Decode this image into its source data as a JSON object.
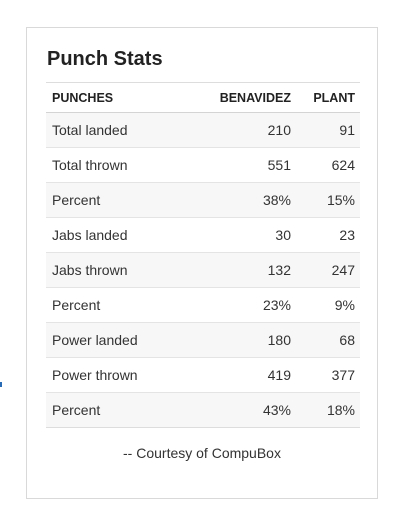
{
  "card": {
    "title": "Punch Stats",
    "columns": [
      "PUNCHES",
      "BENAVIDEZ",
      "PLANT"
    ],
    "rows": [
      {
        "label": "Total landed",
        "a": "210",
        "b": "91"
      },
      {
        "label": "Total thrown",
        "a": "551",
        "b": "624"
      },
      {
        "label": "Percent",
        "a": "38%",
        "b": "15%"
      },
      {
        "label": "Jabs landed",
        "a": "30",
        "b": "23"
      },
      {
        "label": "Jabs thrown",
        "a": "132",
        "b": "247"
      },
      {
        "label": "Percent",
        "a": "23%",
        "b": "9%"
      },
      {
        "label": "Power landed",
        "a": "180",
        "b": "68"
      },
      {
        "label": "Power thrown",
        "a": "419",
        "b": "377"
      },
      {
        "label": "Percent",
        "a": "43%",
        "b": "18%"
      }
    ],
    "footer": "-- Courtesy of CompuBox"
  },
  "colors": {
    "border": "#d9d9d9",
    "stripe": "#f7f7f7",
    "text": "#333333",
    "edge_mark": "#2a6bb5"
  }
}
